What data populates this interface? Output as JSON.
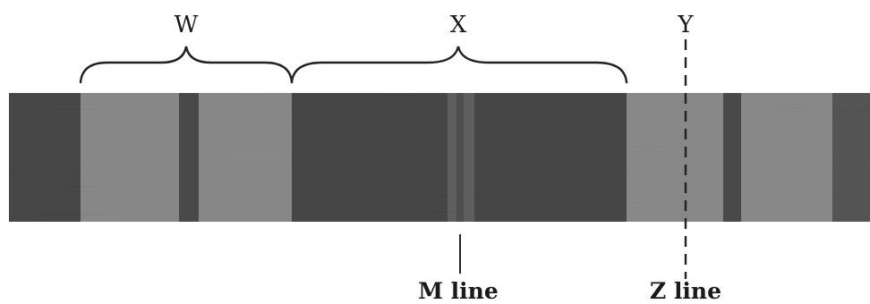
{
  "labels": {
    "w": "W",
    "x": "X",
    "y": "Y",
    "m_line": "M line",
    "z_line": "Z line"
  },
  "colors": {
    "light_band": "#d8d8d8",
    "dark_band": "#141414",
    "line": "#222222"
  }
}
